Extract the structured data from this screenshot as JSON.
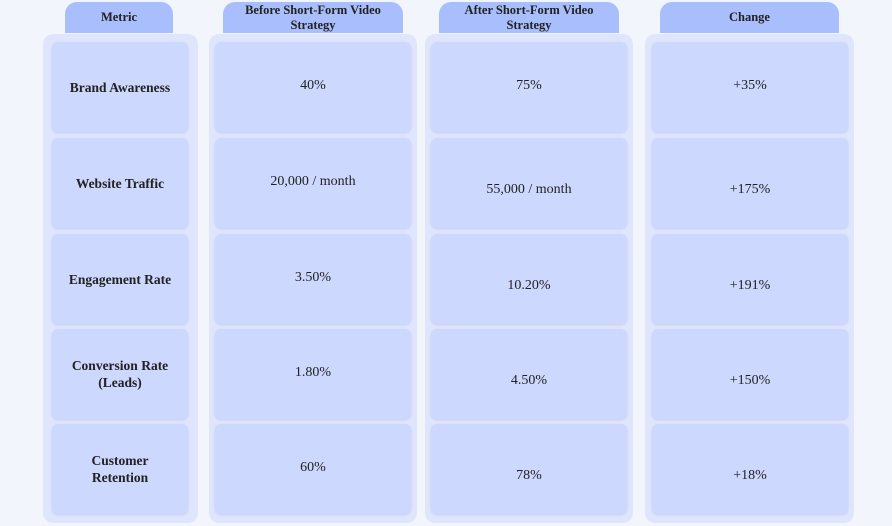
{
  "table": {
    "headers": [
      "Metric",
      "Before Short-Form Video Strategy",
      "After Short-Form Video Strategy",
      "Change"
    ],
    "rows": [
      [
        "Brand Awareness",
        "40%",
        "75%",
        "+35%"
      ],
      [
        "Website Traffic",
        "20,000 / month",
        "55,000 / month",
        "+175%"
      ],
      [
        "Engagement Rate",
        "3.50%",
        "10.20%",
        "+191%"
      ],
      [
        "Conversion Rate (Leads)",
        "1.80%",
        "4.50%",
        "+150%"
      ],
      [
        "Customer Retention",
        "60%",
        "78%",
        "+18%"
      ]
    ]
  }
}
